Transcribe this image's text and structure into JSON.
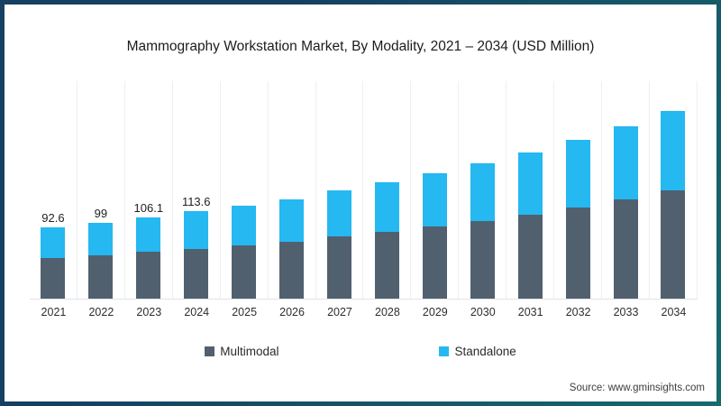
{
  "title": "Mammography Workstation Market, By Modality, 2021 – 2034 (USD Million)",
  "source": "Source: www.gminsights.com",
  "legend": {
    "items": [
      {
        "label": "Multimodal",
        "color": "#51606E"
      },
      {
        "label": "Standalone",
        "color": "#25B8F1"
      }
    ]
  },
  "colors": {
    "frame_gradient_start": "#163F62",
    "frame_gradient_end": "#156A6C",
    "background": "#FFFFFF",
    "gridline": "#EDEFF1",
    "baseline": "#E2E4E6"
  },
  "chart_data": {
    "type": "bar",
    "stacked": true,
    "title": "Mammography Workstation Market, By Modality, 2021 – 2034 (USD Million)",
    "unit": "USD Million",
    "categories": [
      "2021",
      "2022",
      "2023",
      "2024",
      "2025",
      "2026",
      "2027",
      "2028",
      "2029",
      "2030",
      "2031",
      "2032",
      "2033",
      "2034"
    ],
    "series": [
      {
        "name": "Multimodal",
        "color": "#51606E",
        "values": [
          53.2,
          56.9,
          61.0,
          65.3,
          69.8,
          74.5,
          81.1,
          87.4,
          93.8,
          101.5,
          109.5,
          119.2,
          129.5,
          140.8
        ]
      },
      {
        "name": "Standalone",
        "color": "#25B8F1",
        "values": [
          39.4,
          42.1,
          45.1,
          48.3,
          51.6,
          55.1,
          59.9,
          64.6,
          69.4,
          75.0,
          80.9,
          88.1,
          95.7,
          104.1
        ]
      }
    ],
    "totals": [
      92.6,
      99,
      106.1,
      113.6,
      121.4,
      129.6,
      141.0,
      152.0,
      163.2,
      176.5,
      190.4,
      207.3,
      225.2,
      244.9
    ],
    "data_labels": [
      "92.6",
      "99",
      "106.1",
      "113.6",
      "",
      "",
      "",
      "",
      "",
      "",
      "",
      "",
      "",
      ""
    ],
    "xlabel": "",
    "ylabel": "",
    "ylim": [
      0,
      285
    ],
    "grid": "vertical-faint",
    "legend_position": "bottom"
  }
}
